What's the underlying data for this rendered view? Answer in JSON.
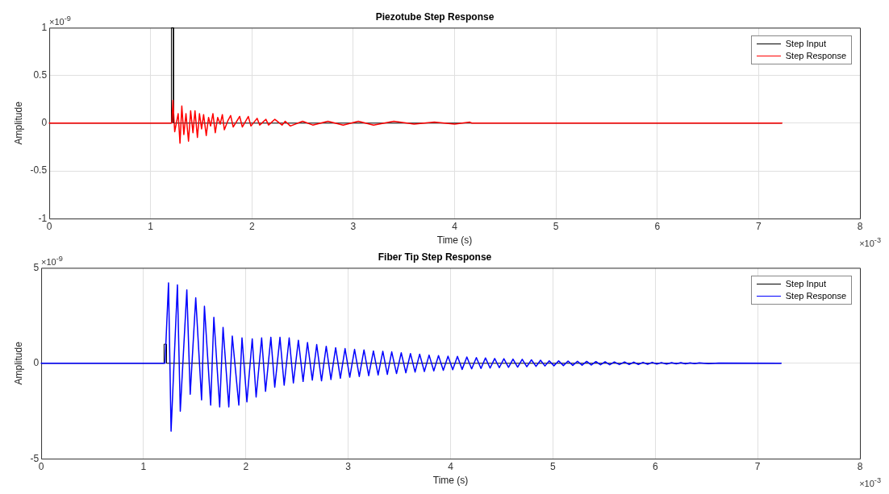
{
  "chart_data": [
    {
      "type": "line",
      "title": "Piezotube Step Response",
      "xlabel": "Time (s)",
      "ylabel": "Amplitude",
      "annotations": [
        "×10$^{-9}$",
        "×10$^{-3}$"
      ],
      "xlim": [
        0,
        8
      ],
      "xticks": [
        0,
        1,
        2,
        3,
        4,
        5,
        6,
        7,
        8
      ],
      "ylim": [
        -1,
        1
      ],
      "yticks": [
        -1,
        -0.5,
        0,
        0.5,
        1
      ],
      "grid": true,
      "legend": "top right",
      "series": [
        {
          "name": "Step Input",
          "color": "#000000",
          "x": [
            0,
            1.205,
            1.205,
            1.225,
            1.225,
            7.23
          ],
          "values": [
            0,
            0,
            1,
            1,
            0,
            0
          ]
        },
        {
          "name": "Step Response",
          "color": "#ff0000",
          "x": [
            0,
            1.21,
            1.22,
            1.238,
            1.272,
            1.29,
            1.308,
            1.328,
            1.349,
            1.374,
            1.395,
            1.418,
            1.438,
            1.462,
            1.482,
            1.503,
            1.523,
            1.549,
            1.572,
            1.592,
            1.615,
            1.638,
            1.662,
            1.687,
            1.708,
            1.728,
            1.76,
            1.79,
            1.815,
            1.879,
            1.905,
            1.964,
            1.99,
            2.051,
            2.077,
            2.138,
            2.164,
            2.226,
            2.297,
            2.328,
            2.379,
            2.5,
            2.6,
            2.75,
            2.9,
            3.05,
            3.2,
            3.4,
            3.6,
            3.8,
            4.0,
            4.15,
            4.17,
            7.23
          ],
          "values": [
            0,
            0,
            0.24,
            -0.09,
            0.1,
            -0.21,
            0.18,
            -0.12,
            0.1,
            -0.19,
            0.13,
            -0.1,
            0.13,
            -0.15,
            0.1,
            -0.06,
            0.09,
            -0.13,
            0.06,
            -0.03,
            0.1,
            -0.1,
            0.06,
            -0.01,
            0.09,
            -0.07,
            0.02,
            0.08,
            -0.04,
            0.07,
            -0.04,
            0.07,
            -0.03,
            0.05,
            -0.02,
            0.04,
            -0.02,
            0.04,
            -0.02,
            0.02,
            -0.03,
            0.02,
            -0.02,
            0.02,
            -0.02,
            0.02,
            -0.02,
            0.02,
            -0.01,
            0.01,
            -0.01,
            0.01,
            0,
            0
          ]
        }
      ]
    },
    {
      "type": "line",
      "title": "Fiber Tip Step Response",
      "xlabel": "Time (s)",
      "ylabel": "Amplitude",
      "annotations": [
        "×10$^{-9}$",
        "×10$^{-3}$"
      ],
      "xlim": [
        0,
        8
      ],
      "xticks": [
        0,
        1,
        2,
        3,
        4,
        5,
        6,
        7,
        8
      ],
      "ylim": [
        -5,
        5
      ],
      "yticks": [
        -5,
        0,
        5
      ],
      "grid": true,
      "legend": "top right",
      "series": [
        {
          "name": "Step Input",
          "color": "#000000",
          "x": [
            0,
            1.2,
            1.2,
            1.225,
            1.225,
            7.23
          ],
          "values": [
            0,
            0,
            1,
            1,
            0,
            0
          ]
        },
        {
          "name": "Step Response",
          "color": "#0000ff",
          "x": [
            0,
            1.21,
            1.244,
            1.269,
            1.331,
            1.359,
            1.423,
            1.456,
            1.51,
            1.567,
            1.595,
            1.656,
            1.687,
            1.744,
            1.777,
            1.833,
            1.867,
            1.931,
            1.962,
            2.01,
            2.062,
            2.1,
            2.154,
            2.192,
            2.244,
            2.282,
            2.333,
            2.374,
            2.423,
            2.464,
            2.513,
            2.559,
            2.602,
            2.649,
            2.692,
            2.739,
            2.785,
            2.831,
            2.877,
            2.923,
            2.969,
            3.015,
            3.062,
            3.108,
            3.154,
            3.2,
            3.246,
            3.292,
            3.338,
            3.382,
            3.425,
            3.472,
            3.518,
            3.563,
            3.608,
            3.653,
            3.698,
            3.744,
            3.79,
            3.836,
            3.882,
            3.929,
            3.975,
            4.021,
            4.067,
            4.113,
            4.159,
            4.206,
            4.252,
            4.297,
            4.341,
            4.386,
            4.431,
            4.476,
            4.521,
            4.566,
            4.61,
            4.655,
            4.7,
            4.745,
            4.79,
            4.835,
            4.879,
            4.922,
            4.964,
            5.01,
            5.056,
            5.102,
            5.148,
            5.194,
            5.24,
            5.285,
            5.33,
            5.375,
            5.42,
            5.465,
            5.51,
            5.555,
            5.6,
            5.65,
            5.7,
            5.745,
            5.79,
            5.835,
            5.88,
            5.925,
            5.97,
            6.015,
            6.06,
            6.11,
            6.16,
            6.205,
            6.25,
            6.295,
            6.34,
            6.385,
            6.43,
            6.52,
            6.62,
            7.23
          ],
          "values": [
            0,
            0,
            4.21,
            -3.56,
            4.11,
            -2.51,
            3.85,
            -1.62,
            3.43,
            -1.92,
            2.99,
            -2.19,
            2.41,
            -2.29,
            1.88,
            -2.29,
            1.43,
            -2.19,
            1.33,
            -2.02,
            1.28,
            -1.77,
            1.33,
            -1.47,
            1.36,
            -1.25,
            1.36,
            -1.15,
            1.33,
            -1.03,
            1.21,
            -0.95,
            1.09,
            -0.88,
            0.98,
            -0.92,
            0.89,
            -0.85,
            0.82,
            -0.78,
            0.77,
            -0.73,
            0.73,
            -0.69,
            0.7,
            -0.65,
            0.65,
            -0.61,
            0.63,
            -0.58,
            0.6,
            -0.54,
            0.55,
            -0.5,
            0.51,
            -0.46,
            0.48,
            -0.43,
            0.43,
            -0.4,
            0.4,
            -0.37,
            0.37,
            -0.34,
            0.36,
            -0.32,
            0.33,
            -0.29,
            0.3,
            -0.27,
            0.28,
            -0.25,
            0.25,
            -0.23,
            0.24,
            -0.21,
            0.22,
            -0.2,
            0.21,
            -0.18,
            0.18,
            -0.16,
            0.16,
            -0.14,
            0.13,
            -0.13,
            0.13,
            -0.12,
            0.12,
            -0.11,
            0.11,
            -0.1,
            0.1,
            -0.09,
            0.09,
            -0.08,
            0.08,
            -0.08,
            0.07,
            -0.07,
            0.07,
            -0.06,
            0.06,
            -0.06,
            0.05,
            -0.05,
            0.05,
            -0.04,
            0.04,
            -0.04,
            0.03,
            -0.03,
            0.03,
            -0.03,
            0.02,
            -0.02,
            0.02,
            -0.02,
            0.01,
            0
          ]
        }
      ]
    }
  ]
}
